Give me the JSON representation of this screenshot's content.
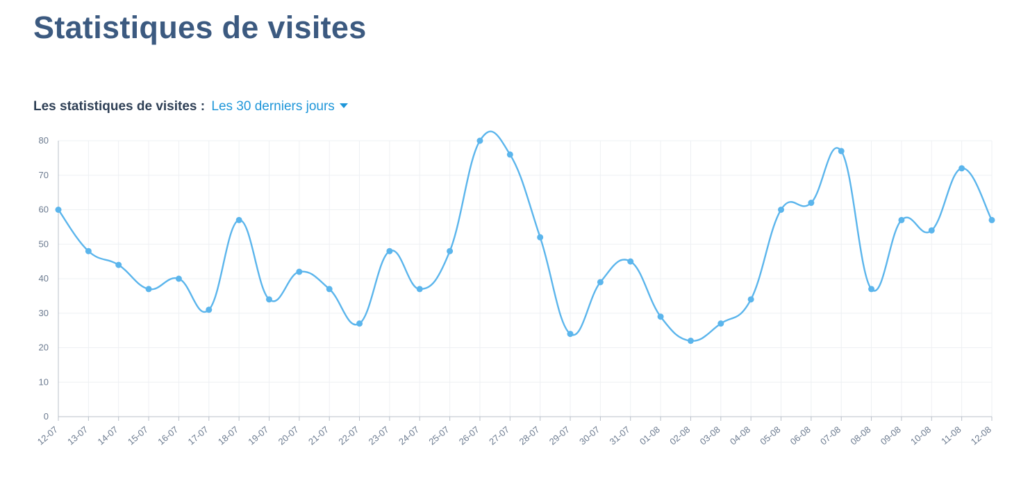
{
  "header": {
    "title": "Statistiques de visites"
  },
  "filter": {
    "label": "Les statistiques de visites :",
    "selected_period": "Les 30 derniers jours"
  },
  "colors": {
    "line": "#5bb5ec",
    "title": "#3c5a80",
    "accent": "#1e96d9"
  },
  "chart_data": {
    "type": "line",
    "title": "",
    "xlabel": "",
    "ylabel": "",
    "ylim": [
      0,
      80
    ],
    "yticks": [
      0,
      10,
      20,
      30,
      40,
      50,
      60,
      70,
      80
    ],
    "grid": true,
    "categories": [
      "12-07",
      "13-07",
      "14-07",
      "15-07",
      "16-07",
      "17-07",
      "18-07",
      "19-07",
      "20-07",
      "21-07",
      "22-07",
      "23-07",
      "24-07",
      "25-07",
      "26-07",
      "27-07",
      "28-07",
      "29-07",
      "30-07",
      "31-07",
      "01-08",
      "02-08",
      "03-08",
      "04-08",
      "05-08",
      "06-08",
      "07-08",
      "08-08",
      "09-08",
      "10-08",
      "11-08",
      "12-08"
    ],
    "series": [
      {
        "values": [
          60,
          48,
          44,
          37,
          40,
          31,
          57,
          34,
          42,
          37,
          27,
          48,
          37,
          48,
          80,
          76,
          52,
          24,
          39,
          45,
          29,
          22,
          27,
          34,
          60,
          62,
          77,
          37,
          57,
          54,
          72,
          57
        ]
      }
    ]
  }
}
